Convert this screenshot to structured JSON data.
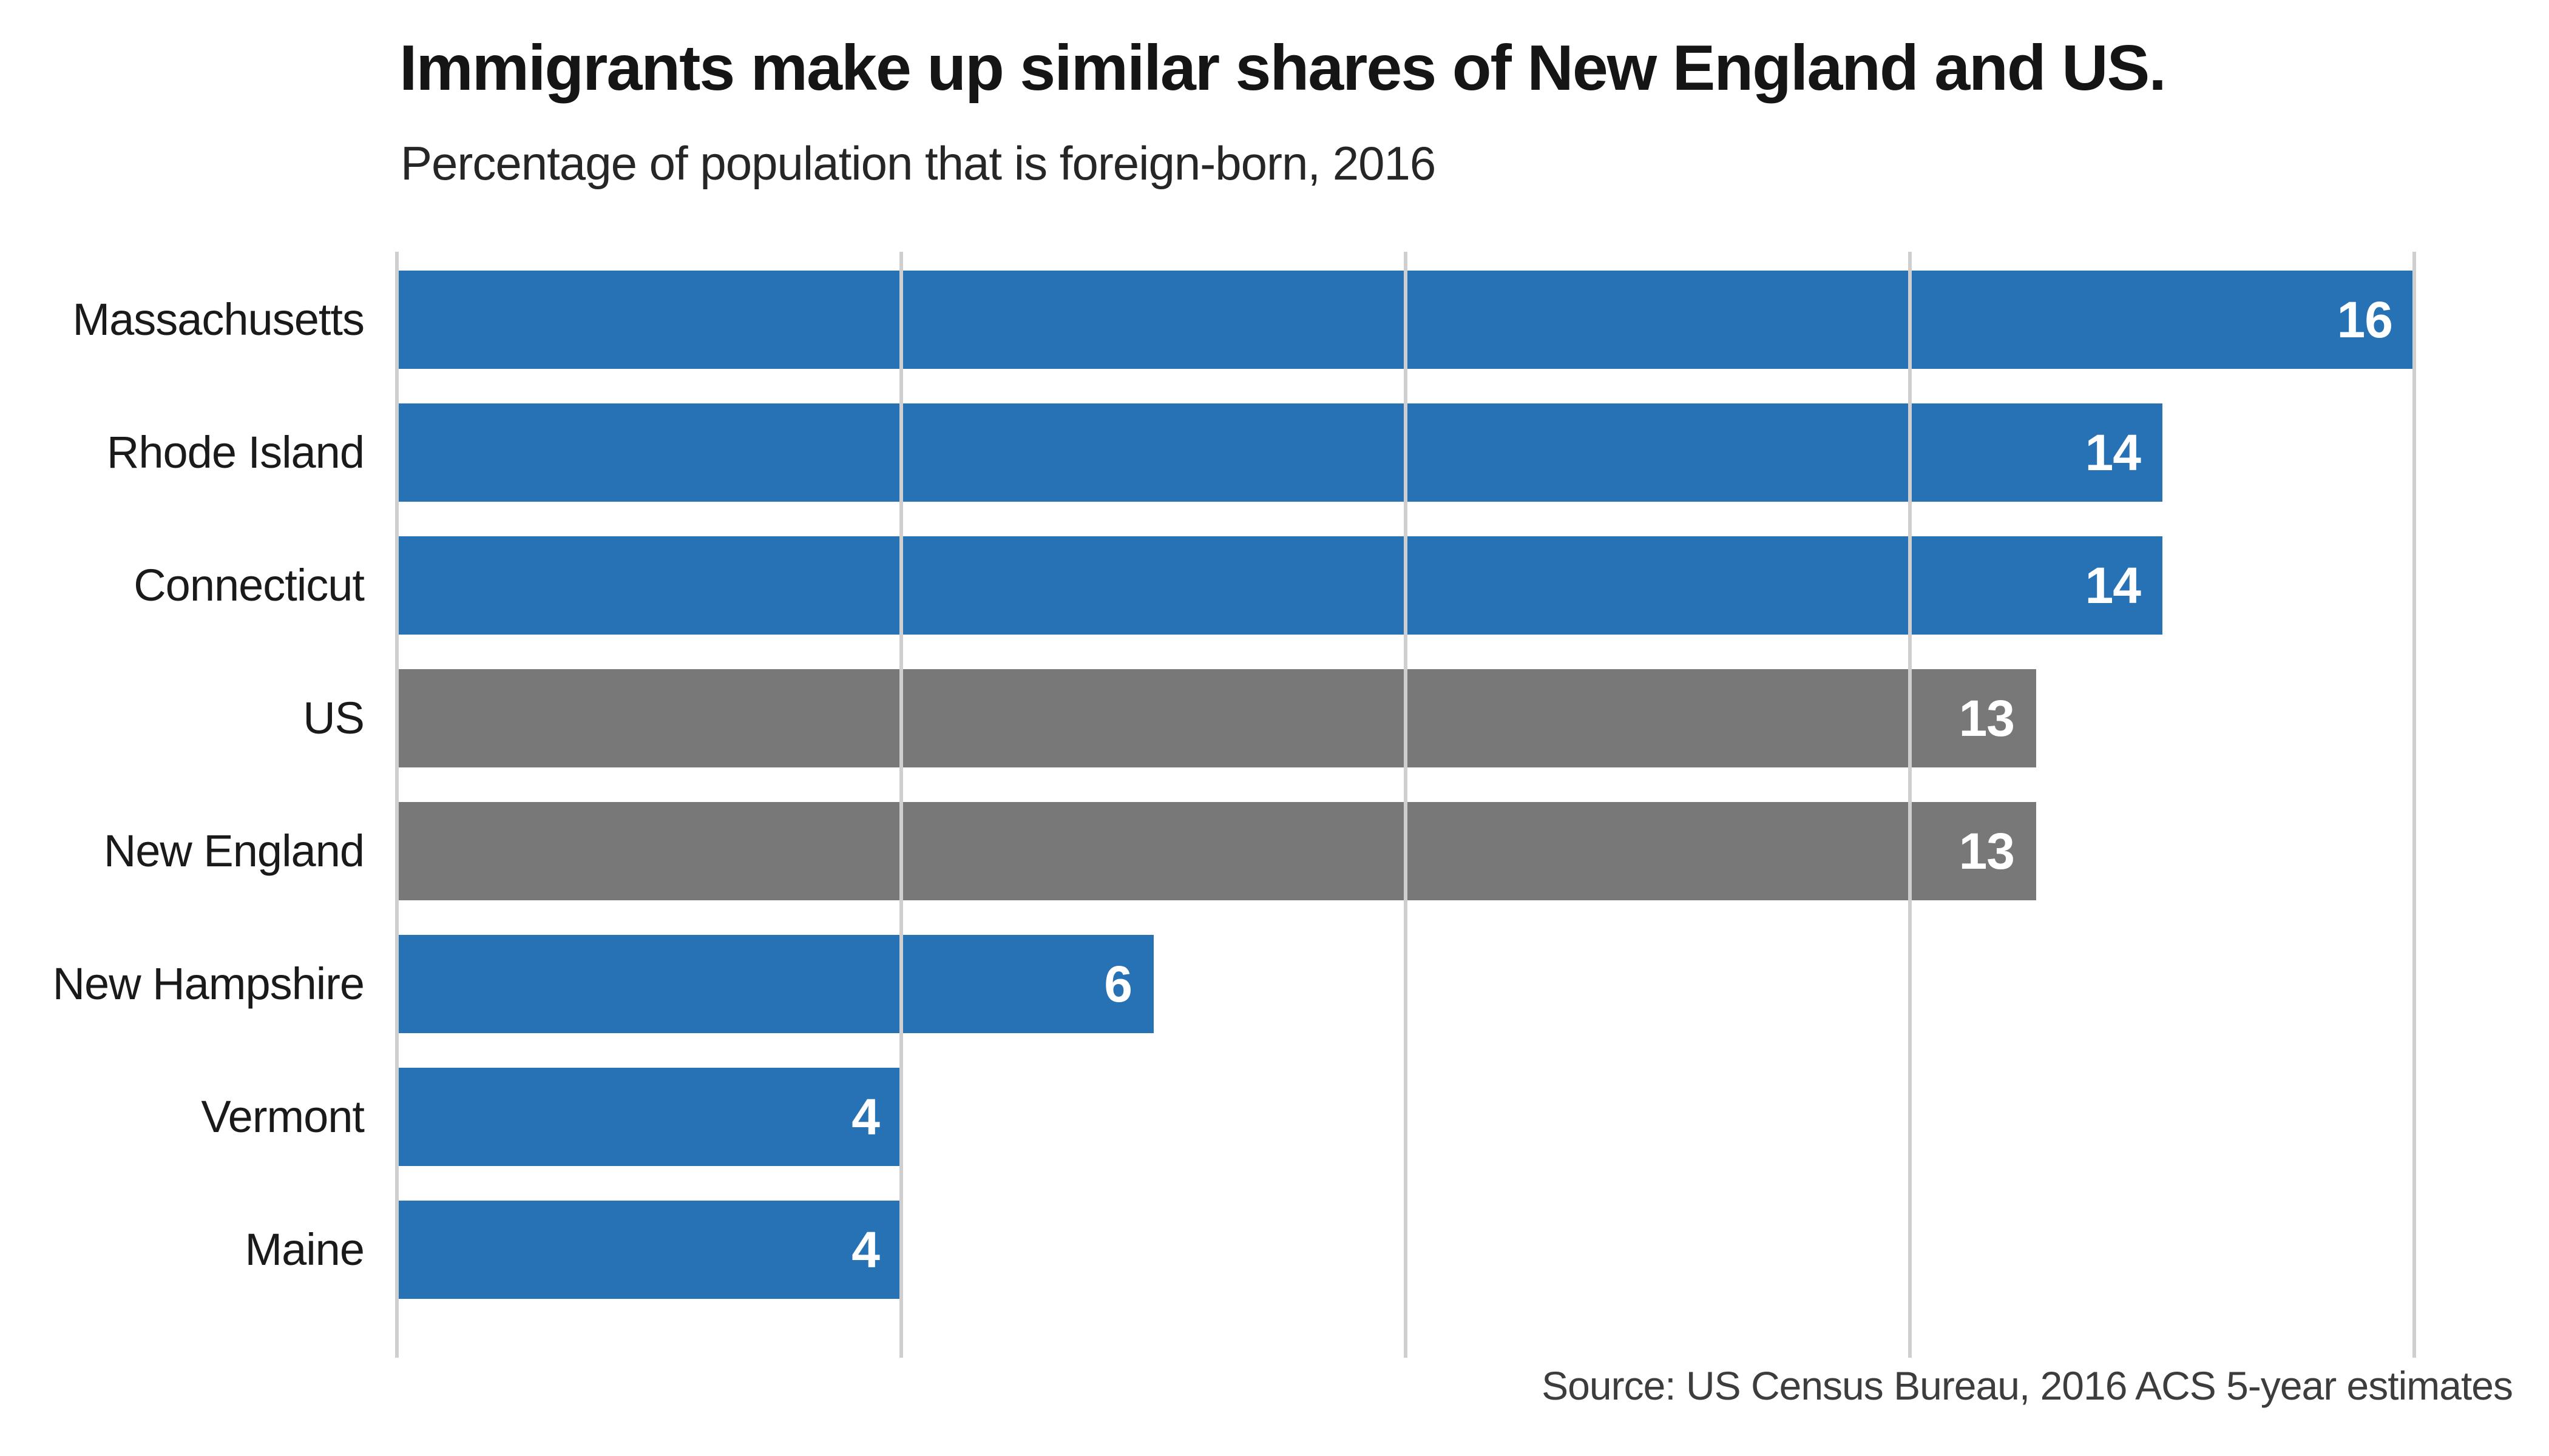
{
  "chart_data": {
    "type": "bar",
    "orientation": "horizontal",
    "title": "Immigrants make up similar shares of New England and US.",
    "subtitle": "Percentage of population that is foreign-born, 2016",
    "source": "Source: US Census Bureau, 2016 ACS 5-year estimates",
    "categories": [
      "Massachusetts",
      "Rhode Island",
      "Connecticut",
      "US",
      "New England",
      "New Hampshire",
      "Vermont",
      "Maine"
    ],
    "values": [
      16,
      14,
      14,
      13,
      13,
      6,
      4,
      4
    ],
    "bar_roles": [
      "state",
      "state",
      "state",
      "aggregate",
      "aggregate",
      "state",
      "state",
      "state"
    ],
    "value_labels": [
      "16",
      "14",
      "14",
      "13",
      "13",
      "6",
      "4",
      "4"
    ],
    "xlim": [
      0,
      16
    ],
    "xticks": [
      0,
      4,
      8,
      12,
      16
    ],
    "grid": true,
    "legend": "none",
    "colors": {
      "state_bar": "#2772b4",
      "aggregate_bar": "#787878",
      "gridline": "#cfcfcf",
      "value_text": "#ffffff",
      "title_text": "#151515",
      "subtitle_text": "#262626",
      "label_text": "#1a1a1a",
      "source_text": "#3d3d3d",
      "background": "#ffffff"
    }
  }
}
